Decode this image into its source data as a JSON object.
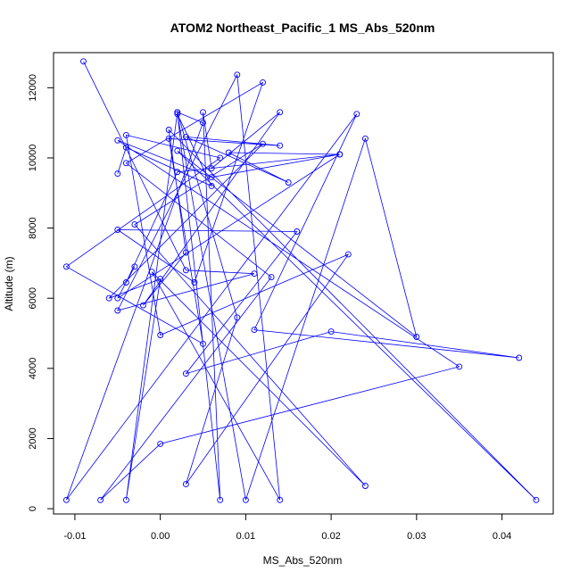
{
  "chart_data": {
    "type": "line",
    "title": "ATOM2 Northeast_Pacific_1 MS_Abs_520nm",
    "xlabel": "MS_Abs_520nm",
    "ylabel": "Altitude (m)",
    "xlim": [
      -0.0125,
      0.046
    ],
    "ylim": [
      -150,
      13000
    ],
    "x_ticks": [
      -0.01,
      0.0,
      0.01,
      0.02,
      0.03,
      0.04
    ],
    "x_tick_labels": [
      "-0.01",
      "0.00",
      "0.01",
      "0.02",
      "0.03",
      "0.04"
    ],
    "y_ticks": [
      0,
      2000,
      4000,
      6000,
      8000,
      10000,
      12000
    ],
    "y_tick_labels": [
      "0",
      "2000",
      "4000",
      "6000",
      "8000",
      "10000",
      "12000"
    ],
    "grid": false,
    "legend": "none",
    "series": [
      {
        "color": "#0000ff",
        "marker": "open-circle",
        "x": [
          -0.009,
          0.003,
          0.011,
          -0.005,
          0.009,
          0.014,
          -0.001,
          0.024,
          -0.003,
          0.012,
          -0.006,
          0.0,
          -0.004,
          0.002,
          0.005,
          -0.011,
          0.023,
          0.011,
          0.042,
          0.02,
          0.003,
          0.016,
          -0.005,
          0.004,
          0.012,
          -0.004,
          0.013,
          -0.007,
          0.0,
          0.035,
          -0.005,
          0.006,
          0.021,
          -0.005,
          -0.003,
          -0.004,
          0.002,
          0.021,
          0.008,
          0.015,
          0.003,
          0.014,
          0.001,
          0.005,
          -0.011,
          0.007,
          -0.004,
          0.0,
          0.022,
          0.003,
          0.009,
          0.002,
          0.007,
          0.005,
          0.006,
          0.014,
          -0.002,
          0.003,
          0.001,
          0.044,
          0.002,
          0.03,
          0.024,
          0.01,
          0.002,
          0.006,
          -0.004,
          -0.005
        ],
        "y": [
          12750,
          6800,
          6700,
          5650,
          12370,
          250,
          6750,
          650,
          8100,
          10400,
          6000,
          6550,
          250,
          11300,
          11000,
          250,
          11250,
          5100,
          4300,
          5050,
          3850,
          7900,
          7950,
          6450,
          12150,
          9850,
          6600,
          250,
          1850,
          4050,
          10500,
          9450,
          10100,
          6000,
          6900,
          6450,
          9600,
          10100,
          10150,
          9300,
          10600,
          10350,
          10550,
          4700,
          6900,
          10000,
          10650,
          4950,
          7250,
          700,
          5450,
          11300,
          250,
          11300,
          9700,
          11300,
          5800,
          7300,
          10800,
          250,
          10200,
          4900,
          10550,
          250,
          11250,
          9200,
          10300,
          9550
        ]
      }
    ]
  }
}
